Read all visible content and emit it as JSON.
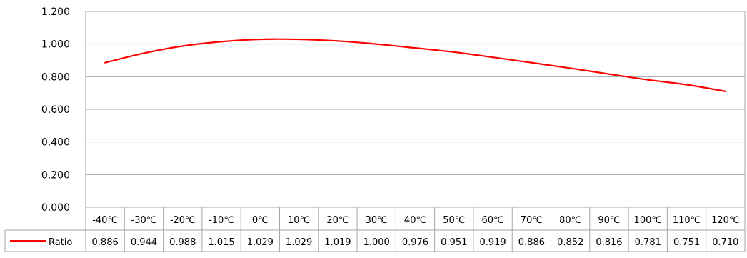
{
  "chart_data": {
    "type": "line",
    "title": "",
    "xlabel": "",
    "ylabel": "",
    "categories": [
      "-40℃",
      "-30℃",
      "-20℃",
      "-10℃",
      "0℃",
      "10℃",
      "20℃",
      "30℃",
      "40℃",
      "50℃",
      "60℃",
      "70℃",
      "80℃",
      "90℃",
      "100℃",
      "110℃",
      "120℃"
    ],
    "series": [
      {
        "name": "Ratio",
        "color": "#ff0000",
        "values": [
          0.886,
          0.944,
          0.988,
          1.015,
          1.029,
          1.029,
          1.019,
          1.0,
          0.976,
          0.951,
          0.919,
          0.886,
          0.852,
          0.816,
          0.781,
          0.751,
          0.71
        ],
        "value_labels": [
          "0.886",
          "0.944",
          "0.988",
          "1.015",
          "1.029",
          "1.029",
          "1.019",
          "1.000",
          "0.976",
          "0.951",
          "0.919",
          "0.886",
          "0.852",
          "0.816",
          "0.781",
          "0.751",
          "0.710"
        ]
      }
    ],
    "ylim": [
      0,
      1.2
    ],
    "y_ticks": [
      "0.000",
      "0.200",
      "0.400",
      "0.600",
      "0.800",
      "1.000",
      "1.200"
    ],
    "grid": true,
    "legend": "data-table-left"
  }
}
